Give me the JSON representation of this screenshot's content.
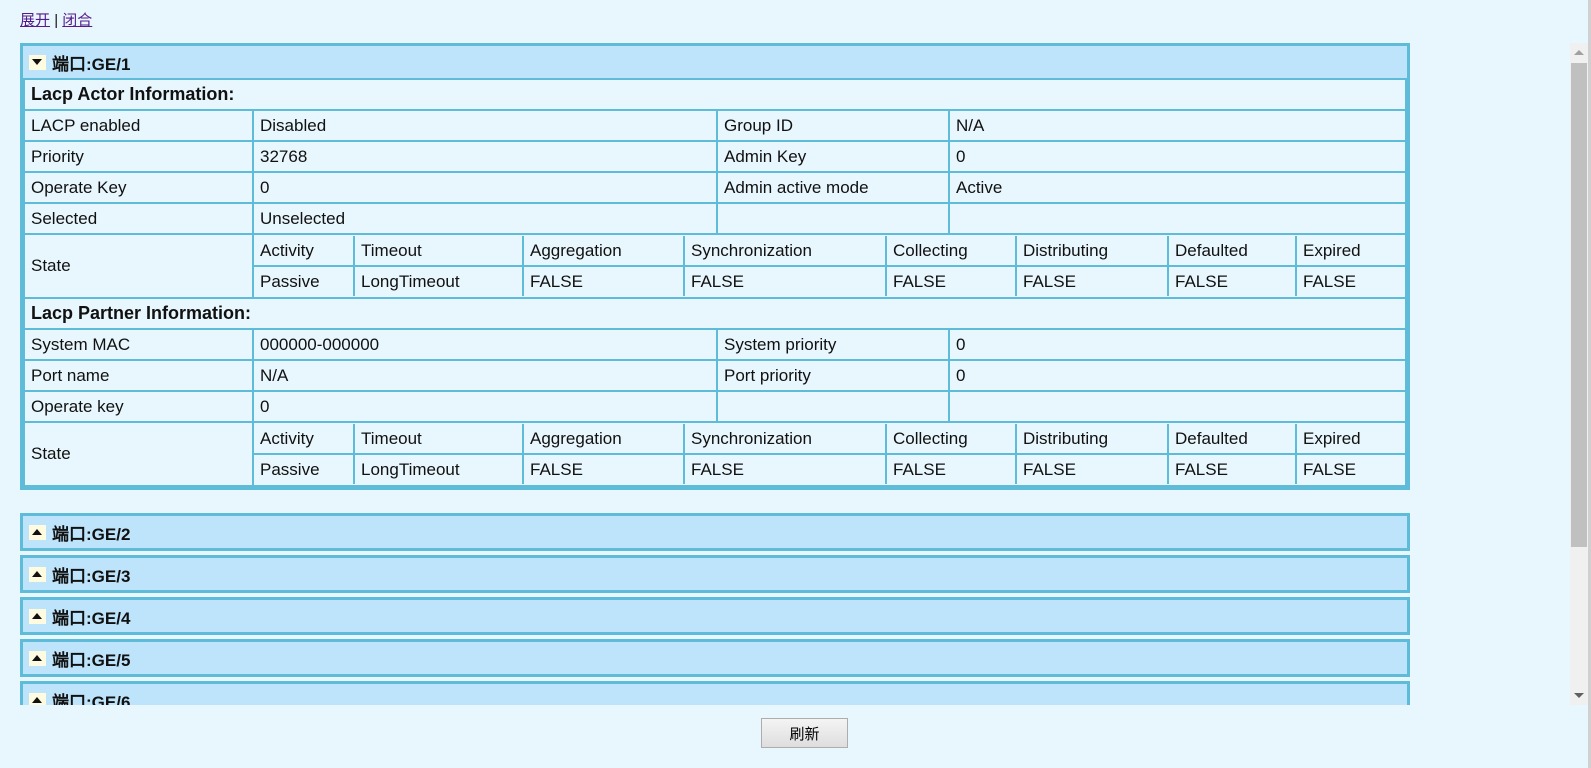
{
  "links": {
    "expand": "展开",
    "sep": "|",
    "collapse": "闭合"
  },
  "port1": {
    "title": "端口:GE/1",
    "actor_heading": "Lacp Actor Information:",
    "actor_rows": [
      [
        "LACP enabled",
        "Disabled",
        "Group ID",
        "N/A"
      ],
      [
        "Priority",
        "32768",
        "Admin Key",
        "0"
      ],
      [
        "Operate Key",
        "0",
        "Admin active mode",
        "Active"
      ],
      [
        "Selected",
        "Unselected",
        "",
        ""
      ]
    ],
    "state_label": "State",
    "state_headers": [
      "Activity",
      "Timeout",
      "Aggregation",
      "Synchronization",
      "Collecting",
      "Distributing",
      "Defaulted",
      "Expired"
    ],
    "actor_state_values": [
      "Passive",
      "LongTimeout",
      "FALSE",
      "FALSE",
      "FALSE",
      "FALSE",
      "FALSE",
      "FALSE"
    ],
    "partner_heading": "Lacp Partner Information:",
    "partner_rows": [
      [
        "System MAC",
        "000000-000000",
        "System priority",
        "0"
      ],
      [
        "Port name",
        "N/A",
        "Port priority",
        "0"
      ],
      [
        "Operate key",
        "0",
        "",
        ""
      ]
    ],
    "partner_state_values": [
      "Passive",
      "LongTimeout",
      "FALSE",
      "FALSE",
      "FALSE",
      "FALSE",
      "FALSE",
      "FALSE"
    ]
  },
  "collapsed_ports": [
    "端口:GE/2",
    "端口:GE/3",
    "端口:GE/4",
    "端口:GE/5",
    "端口:GE/6"
  ],
  "refresh_label": "刷新",
  "colors": {
    "header_bg": "#bde4fb",
    "border": "#5fbcd9",
    "page_bg": "#e8f6fd"
  }
}
